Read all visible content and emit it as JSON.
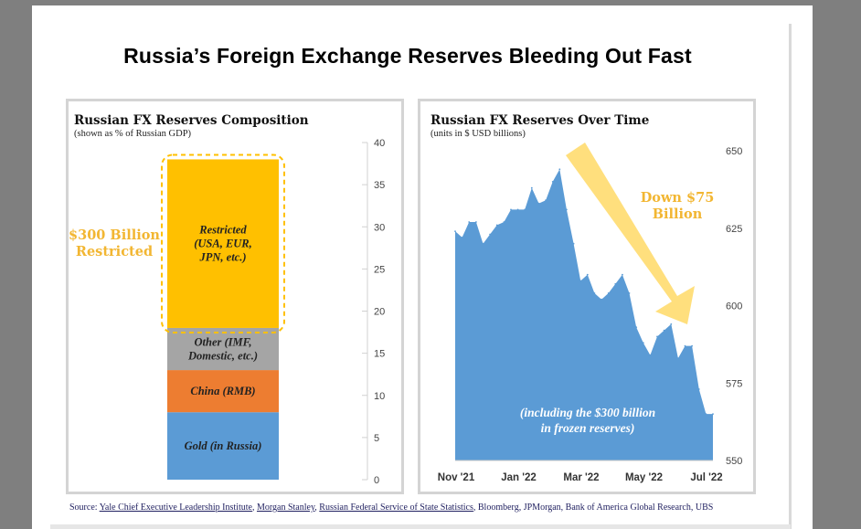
{
  "title": "Russia’s Foreign Exchange Reserves Bleeding Out Fast",
  "source": {
    "prefix": "Source: ",
    "items": [
      "Yale Chief Executive Leadership Institute",
      "Morgan Stanley",
      "Russian Federal Service of State Statistics",
      "Bloomberg",
      "JPMorgan",
      "Bank of America Global Research",
      "UBS"
    ]
  },
  "chart_data": [
    {
      "type": "bar",
      "title": "Russian FX Reserves Composition",
      "subtitle": "(shown as % of Russian GDP)",
      "stacked": true,
      "ylim": [
        0,
        40
      ],
      "yticks": [
        0,
        5,
        10,
        15,
        20,
        25,
        30,
        35,
        40
      ],
      "segments": [
        {
          "label": "Gold (in Russia)",
          "label_lines": [
            "Gold (in Russia)"
          ],
          "start": 0,
          "end": 8,
          "color": "#5b9bd5"
        },
        {
          "label": "China (RMB)",
          "label_lines": [
            "China (RMB)"
          ],
          "start": 8,
          "end": 13,
          "color": "#ed7d31"
        },
        {
          "label": "Other (IMF, Domestic, etc.)",
          "label_lines": [
            "Other (IMF,",
            "Domestic, etc.)"
          ],
          "start": 13,
          "end": 18,
          "color": "#a5a5a5"
        },
        {
          "label": "Restricted (USA, EUR, JPN, etc.)",
          "label_lines": [
            "Restricted",
            "(USA, EUR,",
            "JPN, etc.)"
          ],
          "start": 18,
          "end": 38,
          "color": "#ffc000"
        }
      ],
      "annotation": {
        "lines": [
          "$300 Billion",
          "Restricted"
        ],
        "color": "#f2b632"
      }
    },
    {
      "type": "area",
      "title": "Russian FX Reserves Over Time",
      "subtitle": "(units in $ USD billions)",
      "ylim": [
        550,
        650
      ],
      "yticks": [
        550,
        575,
        600,
        625,
        650
      ],
      "xticks": [
        "Nov '21",
        "Jan '22",
        "Mar '22",
        "May '22",
        "Jul '22"
      ],
      "color": "#5b9bd5",
      "series": [
        {
          "x": [
            "2021-10-29",
            "2021-11-05",
            "2021-11-12",
            "2021-11-19",
            "2021-11-26",
            "2021-12-03",
            "2021-12-10",
            "2021-12-17",
            "2021-12-24",
            "2021-12-31",
            "2022-01-07",
            "2022-01-14",
            "2022-01-21",
            "2022-01-28",
            "2022-02-04",
            "2022-02-11",
            "2022-02-18",
            "2022-02-25",
            "2022-03-04",
            "2022-03-11",
            "2022-03-18",
            "2022-03-25",
            "2022-04-01",
            "2022-04-08",
            "2022-04-15",
            "2022-04-22",
            "2022-04-29",
            "2022-05-06",
            "2022-05-13",
            "2022-05-20",
            "2022-05-27",
            "2022-06-03",
            "2022-06-10",
            "2022-06-17",
            "2022-06-24",
            "2022-07-01",
            "2022-07-08",
            "2022-07-15"
          ],
          "values": [
            624,
            622,
            627,
            627,
            620,
            623,
            626,
            627,
            631,
            631,
            631,
            638,
            633,
            634,
            640,
            644,
            631,
            620,
            608,
            610,
            604,
            602,
            604,
            607,
            610,
            604,
            593,
            588,
            584,
            590,
            592,
            594,
            583,
            587,
            587,
            573,
            565,
            565
          ]
        }
      ],
      "arrow_label": {
        "lines": [
          "Down $75",
          "Billion"
        ],
        "color": "#f2b632"
      },
      "inner_label": {
        "lines": [
          "(including the $300 billion",
          "in frozen reserves)"
        ]
      }
    }
  ]
}
